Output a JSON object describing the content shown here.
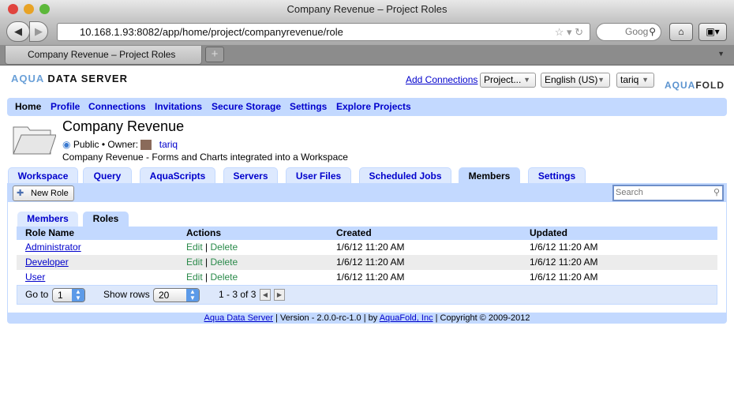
{
  "browser": {
    "window_title": "Company Revenue – Project Roles",
    "url": "10.168.1.93:8082/app/home/project/companyrevenue/role",
    "search_placeholder": "Goog",
    "tab_title": "Company Revenue – Project Roles"
  },
  "header": {
    "logo": "AQUA DATA SERVER",
    "add_connections": "Add Connections",
    "project_select": "Project...",
    "language_select": "English (US)",
    "user_select": "tariq",
    "brand_logo": "AQUAFOLD"
  },
  "nav": [
    "Home",
    "Profile",
    "Connections",
    "Invitations",
    "Secure Storage",
    "Settings",
    "Explore Projects"
  ],
  "project": {
    "title": "Company Revenue",
    "visibility": "Public •",
    "owner_label": "Owner:",
    "owner": "tariq",
    "description": "Company Revenue - Forms and Charts integrated into a Workspace"
  },
  "tabs": [
    "Workspace",
    "Query",
    "AquaScripts",
    "Servers",
    "User Files",
    "Scheduled Jobs",
    "Members",
    "Settings"
  ],
  "active_tab": "Members",
  "toolbar": {
    "new_role": "New Role",
    "search_placeholder": "Search"
  },
  "subtabs": [
    "Members",
    "Roles"
  ],
  "active_subtab": "Roles",
  "table": {
    "columns": [
      "Role Name",
      "Actions",
      "Created",
      "Updated"
    ],
    "rows": [
      {
        "name": "Administrator",
        "edit": "Edit",
        "sep": "|",
        "delete": "Delete",
        "created": "1/6/12 11:20 AM",
        "updated": "1/6/12 11:20 AM"
      },
      {
        "name": "Developer",
        "edit": "Edit",
        "sep": "|",
        "delete": "Delete",
        "created": "1/6/12 11:20 AM",
        "updated": "1/6/12 11:20 AM"
      },
      {
        "name": "User",
        "edit": "Edit",
        "sep": "|",
        "delete": "Delete",
        "created": "1/6/12 11:20 AM",
        "updated": "1/6/12 11:20 AM"
      }
    ]
  },
  "pager": {
    "goto_label": "Go to",
    "goto_value": "1",
    "rows_label": "Show rows",
    "rows_value": "20",
    "range": "1 - 3 of 3"
  },
  "footer": {
    "link1": "Aqua Data Server",
    "version": " | Version - 2.0.0-rc-1.0 | by ",
    "link2": "AquaFold, Inc",
    "copyright": " | Copyright © 2009-2012"
  }
}
